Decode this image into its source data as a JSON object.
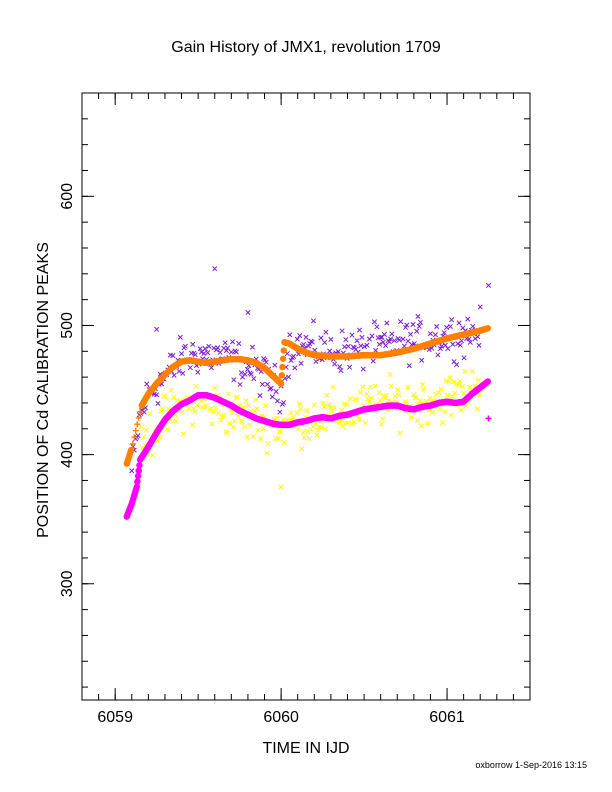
{
  "chart_data": {
    "type": "scatter",
    "title": "Gain History of JMX1, revolution 1709",
    "xlabel": "TIME IN IJD",
    "ylabel": "POSITION OF Cd CALIBRATION PEAKS",
    "xlim": [
      6058.8,
      6061.5
    ],
    "ylim": [
      210,
      680
    ],
    "x_ticks": [
      6059,
      6060,
      6061
    ],
    "y_ticks": [
      300,
      400,
      500,
      600
    ],
    "grid": false,
    "series": [
      {
        "marker": "x",
        "color": "#7f1fd1",
        "style": "scattered-points",
        "trend": [
          [
            6059.1,
            386
          ],
          [
            6059.15,
            430
          ],
          [
            6059.2,
            447
          ],
          [
            6059.3,
            460
          ],
          [
            6059.4,
            474
          ],
          [
            6059.5,
            478
          ],
          [
            6059.6,
            476
          ],
          [
            6059.7,
            474
          ],
          [
            6059.8,
            468
          ],
          [
            6059.9,
            460
          ],
          [
            6060.0,
            448
          ],
          [
            6060.05,
            482
          ],
          [
            6060.15,
            483
          ],
          [
            6060.3,
            480
          ],
          [
            6060.5,
            482
          ],
          [
            6060.7,
            487
          ],
          [
            6060.9,
            490
          ],
          [
            6061.1,
            493
          ],
          [
            6061.2,
            496
          ]
        ],
        "outliers": [
          [
            6059.6,
            544
          ],
          [
            6059.25,
            497
          ],
          [
            6061.25,
            531
          ],
          [
            6059.8,
            510
          ]
        ]
      },
      {
        "marker": "x",
        "color": "#ffff00",
        "style": "scattered-points",
        "trend": [
          [
            6059.15,
            400
          ],
          [
            6059.2,
            415
          ],
          [
            6059.3,
            428
          ],
          [
            6059.4,
            436
          ],
          [
            6059.5,
            440
          ],
          [
            6059.6,
            437
          ],
          [
            6059.7,
            432
          ],
          [
            6059.8,
            428
          ],
          [
            6059.9,
            425
          ],
          [
            6060.0,
            422
          ],
          [
            6060.1,
            426
          ],
          [
            6060.2,
            428
          ],
          [
            6060.3,
            431
          ],
          [
            6060.4,
            433
          ],
          [
            6060.5,
            436
          ],
          [
            6060.6,
            440
          ],
          [
            6060.7,
            440
          ],
          [
            6060.8,
            440
          ],
          [
            6060.9,
            443
          ],
          [
            6061.0,
            444
          ],
          [
            6061.1,
            448
          ],
          [
            6061.2,
            455
          ]
        ],
        "outliers": [
          [
            6060.0,
            375
          ]
        ]
      },
      {
        "marker": "dot",
        "color": "#ff8000",
        "style": "dense-line",
        "points": [
          [
            6059.07,
            393
          ],
          [
            6059.1,
            405
          ],
          [
            6059.13,
            422
          ],
          [
            6059.16,
            438
          ],
          [
            6059.2,
            447
          ],
          [
            6059.25,
            455
          ],
          [
            6059.3,
            462
          ],
          [
            6059.35,
            468
          ],
          [
            6059.4,
            472
          ],
          [
            6059.45,
            473
          ],
          [
            6059.5,
            472
          ],
          [
            6059.55,
            471
          ],
          [
            6059.6,
            472
          ],
          [
            6059.65,
            473
          ],
          [
            6059.7,
            474
          ],
          [
            6059.75,
            474
          ],
          [
            6059.8,
            473
          ],
          [
            6059.85,
            471
          ],
          [
            6059.9,
            467
          ],
          [
            6059.95,
            461
          ],
          [
            6060.0,
            455
          ],
          [
            6060.02,
            487
          ],
          [
            6060.05,
            486
          ],
          [
            6060.1,
            482
          ],
          [
            6060.15,
            479
          ],
          [
            6060.2,
            477
          ],
          [
            6060.3,
            476
          ],
          [
            6060.4,
            476
          ],
          [
            6060.5,
            477
          ],
          [
            6060.6,
            477
          ],
          [
            6060.7,
            479
          ],
          [
            6060.8,
            482
          ],
          [
            6060.9,
            486
          ],
          [
            6061.0,
            490
          ],
          [
            6061.1,
            493
          ],
          [
            6061.2,
            496
          ],
          [
            6061.25,
            498
          ]
        ]
      },
      {
        "marker": "dot",
        "color": "#ff00ff",
        "style": "dense-line",
        "points": [
          [
            6059.07,
            352
          ],
          [
            6059.1,
            362
          ],
          [
            6059.13,
            375
          ],
          [
            6059.15,
            396
          ],
          [
            6059.2,
            406
          ],
          [
            6059.25,
            417
          ],
          [
            6059.3,
            427
          ],
          [
            6059.35,
            434
          ],
          [
            6059.4,
            439
          ],
          [
            6059.45,
            442
          ],
          [
            6059.5,
            446
          ],
          [
            6059.55,
            446
          ],
          [
            6059.6,
            444
          ],
          [
            6059.65,
            441
          ],
          [
            6059.7,
            438
          ],
          [
            6059.75,
            434
          ],
          [
            6059.8,
            431
          ],
          [
            6059.85,
            428
          ],
          [
            6059.9,
            426
          ],
          [
            6059.95,
            424
          ],
          [
            6060.0,
            423
          ],
          [
            6060.05,
            423
          ],
          [
            6060.1,
            425
          ],
          [
            6060.15,
            426
          ],
          [
            6060.2,
            428
          ],
          [
            6060.25,
            429
          ],
          [
            6060.3,
            428
          ],
          [
            6060.35,
            430
          ],
          [
            6060.4,
            431
          ],
          [
            6060.45,
            433
          ],
          [
            6060.5,
            435
          ],
          [
            6060.55,
            436
          ],
          [
            6060.6,
            437
          ],
          [
            6060.65,
            438
          ],
          [
            6060.7,
            438
          ],
          [
            6060.75,
            436
          ],
          [
            6060.8,
            435
          ],
          [
            6060.85,
            437
          ],
          [
            6060.9,
            438
          ],
          [
            6060.95,
            440
          ],
          [
            6061.0,
            441
          ],
          [
            6061.05,
            440
          ],
          [
            6061.1,
            441
          ],
          [
            6061.15,
            447
          ],
          [
            6061.2,
            452
          ],
          [
            6061.25,
            457
          ]
        ],
        "extra_point": [
          6061.25,
          428
        ]
      }
    ],
    "footer": "oxborrow  1-Sep-2016 13:15"
  }
}
